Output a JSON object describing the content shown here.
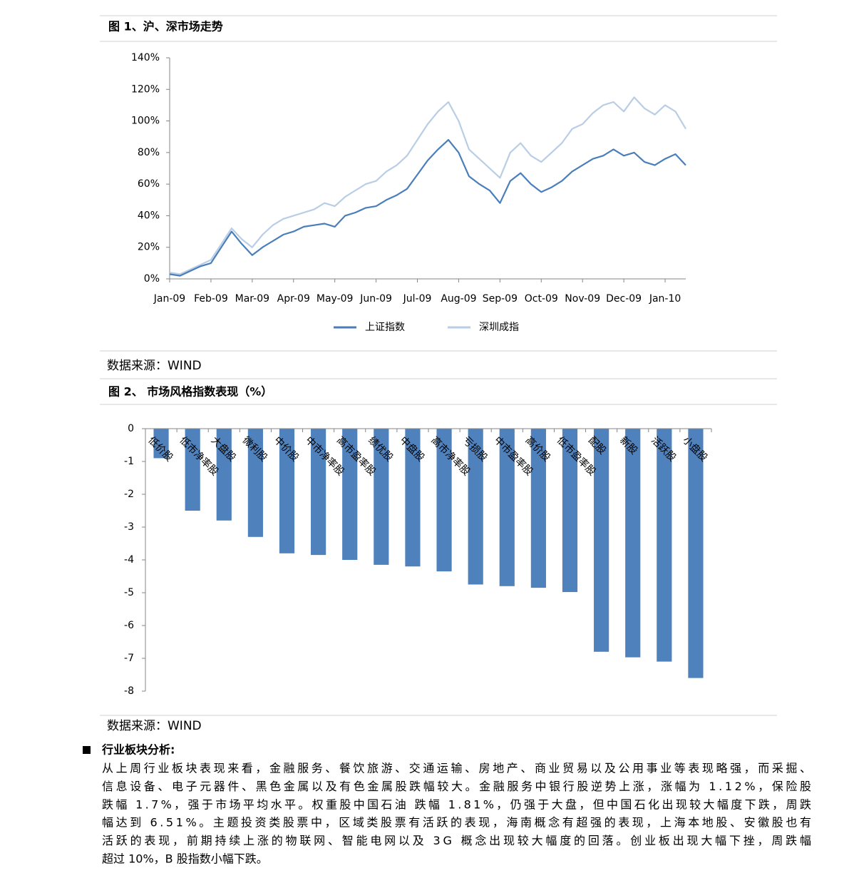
{
  "chart_data": [
    {
      "type": "line",
      "title": "图 1、沪、深市场走势",
      "source": "数据来源：WIND",
      "categories": [
        "Jan-09",
        null,
        null,
        null,
        "Feb-09",
        null,
        null,
        null,
        "Mar-09",
        null,
        null,
        null,
        "Apr-09",
        null,
        null,
        null,
        "May-09",
        null,
        null,
        null,
        "Jun-09",
        null,
        null,
        null,
        "Jul-09",
        null,
        null,
        null,
        "Aug-09",
        null,
        null,
        null,
        "Sep-09",
        null,
        null,
        null,
        "Oct-09",
        null,
        null,
        null,
        "Nov-09",
        null,
        null,
        null,
        "Dec-09",
        null,
        null,
        null,
        "Jan-10",
        null,
        null
      ],
      "series": [
        {
          "name": "上证指数",
          "color": "#4a7ebb",
          "values": [
            3,
            2,
            5,
            8,
            10,
            20,
            30,
            22,
            15,
            20,
            24,
            28,
            30,
            33,
            34,
            35,
            33,
            40,
            42,
            45,
            46,
            50,
            53,
            57,
            66,
            75,
            82,
            88,
            80,
            65,
            60,
            56,
            48,
            62,
            67,
            60,
            55,
            58,
            62,
            68,
            72,
            76,
            78,
            82,
            78,
            80,
            74,
            72,
            76,
            79,
            72
          ]
        },
        {
          "name": "深圳成指",
          "color": "#b9cde5",
          "values": [
            4,
            3,
            6,
            9,
            12,
            22,
            32,
            25,
            20,
            28,
            34,
            38,
            40,
            42,
            44,
            48,
            46,
            52,
            56,
            60,
            62,
            68,
            72,
            78,
            88,
            98,
            106,
            112,
            100,
            82,
            76,
            70,
            64,
            80,
            86,
            78,
            74,
            80,
            86,
            95,
            98,
            105,
            110,
            112,
            106,
            115,
            108,
            104,
            110,
            106,
            95
          ]
        }
      ],
      "ylim": [
        0,
        140
      ],
      "yticks": [
        {
          "value": 0,
          "label": "0%"
        },
        {
          "value": 20,
          "label": "20%"
        },
        {
          "value": 40,
          "label": "40%"
        },
        {
          "value": 60,
          "label": "60%"
        },
        {
          "value": 80,
          "label": "80%"
        },
        {
          "value": 100,
          "label": "100%"
        },
        {
          "value": 120,
          "label": "120%"
        },
        {
          "value": 140,
          "label": "140%"
        }
      ],
      "legend": "bottom"
    },
    {
      "type": "bar",
      "title": "图 2、 市场风格指数表现（%）",
      "source": "数据来源：WIND",
      "categories": [
        "低价股",
        "低市净率股",
        "大盘股",
        "微利股",
        "中价股",
        "中市净率股",
        "高市盈率股",
        "绩优股",
        "中盘股",
        "高市净率股",
        "亏损股",
        "中市盈率股",
        "高价股",
        "低市盈率股",
        "配股",
        "新股",
        "活跃股",
        "小盘股"
      ],
      "values": [
        -0.9,
        -2.5,
        -2.8,
        -3.3,
        -3.8,
        -3.85,
        -4.0,
        -4.15,
        -4.2,
        -4.35,
        -4.75,
        -4.8,
        -4.85,
        -4.98,
        -6.8,
        -6.97,
        -7.1,
        -7.6
      ],
      "color": "#4f81bd",
      "ylim": [
        -8,
        0
      ],
      "yticks": [
        0,
        -1,
        -2,
        -3,
        -4,
        -5,
        -6,
        -7,
        -8
      ]
    }
  ],
  "section": {
    "heading": "行业板块分析:",
    "lines": [
      "从上周行业板块表现来看，金融服务、餐饮旅游、交通运输、房地产、商业贸易以及公用事业等表现略强，而采掘、",
      "信息设备、电子元器件、黑色金属以及有色金属股跌幅较大。金融服务中银行股逆势上涨，涨幅为 1.12%，保险股",
      "跌幅 1.7%，强于市场平均水平。权重股中国石油 跌幅 1.81%，仍强于大盘，但中国石化出现较大幅度下跌，周跌",
      "幅达到 6.51%。主题投资类股票中，区域类股票有活跃的表现，海南概念有超强的表现，上海本地股、安徽股也有",
      "活跃的表现，前期持续上涨的物联网、智能电网以及 3G 概念出现较大幅度的回落。创业板出现大幅下挫，周跌幅",
      "超过 10%，B 股指数小幅下跌。"
    ]
  }
}
